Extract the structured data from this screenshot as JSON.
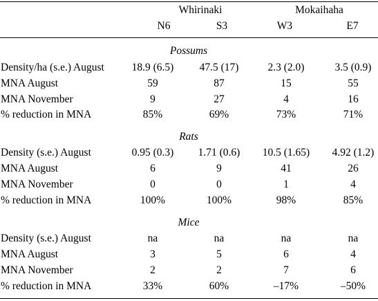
{
  "header": {
    "groups": [
      "Whirinaki",
      "Mokaihaha"
    ],
    "columns": [
      "N6",
      "S3",
      "W3",
      "E7"
    ]
  },
  "sections": [
    {
      "title": "Possums",
      "rows": [
        {
          "label": "Density/ha (s.e.) August",
          "values": [
            "18.9 (6.5)",
            "47.5 (17)",
            "2.3 (2.0)",
            "3.5 (0.9)"
          ]
        },
        {
          "label": "MNA August",
          "values": [
            "59",
            "87",
            "15",
            "55"
          ]
        },
        {
          "label": "MNA November",
          "values": [
            "9",
            "27",
            "4",
            "16"
          ]
        },
        {
          "label": "% reduction in MNA",
          "values": [
            "85%",
            "69%",
            "73%",
            "71%"
          ]
        }
      ]
    },
    {
      "title": "Rats",
      "rows": [
        {
          "label": "Density (s.e.) August",
          "values": [
            "0.95 (0.3)",
            "1.71 (0.6)",
            "10.5 (1.65)",
            "4.92 (1.2)"
          ]
        },
        {
          "label": "MNA August",
          "values": [
            "6",
            "9",
            "41",
            "26"
          ]
        },
        {
          "label": "MNA November",
          "values": [
            "0",
            "0",
            "1",
            "4"
          ]
        },
        {
          "label": "% reduction in MNA",
          "values": [
            "100%",
            "100%",
            "98%",
            "85%"
          ]
        }
      ]
    },
    {
      "title": "Mice",
      "rows": [
        {
          "label": "Density (s.e.) August",
          "values": [
            "na",
            "na",
            "na",
            "na"
          ]
        },
        {
          "label": "MNA August",
          "values": [
            "3",
            "5",
            "6",
            "4"
          ]
        },
        {
          "label": "MNA November",
          "values": [
            "2",
            "2",
            "7",
            "6"
          ]
        },
        {
          "label": "% reduction in MNA",
          "values": [
            "33%",
            "60%",
            "–17%",
            "–50%"
          ]
        }
      ]
    }
  ]
}
